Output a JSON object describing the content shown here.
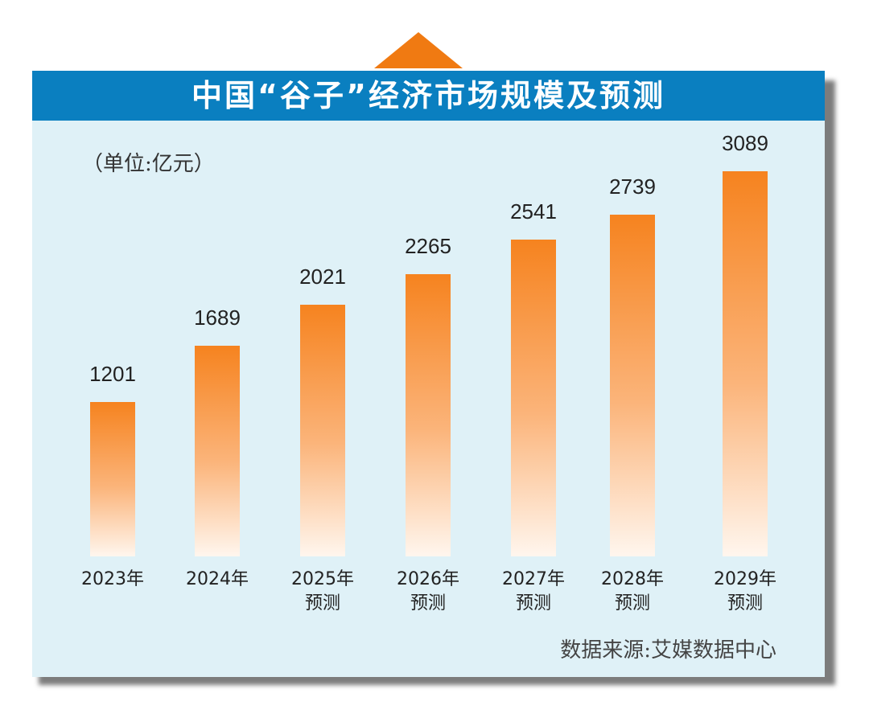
{
  "chart_data": {
    "type": "bar",
    "title": "中国“谷子”经济市场规模及预测",
    "unit_label": "（单位:亿元）",
    "categories": [
      "2023年",
      "2024年",
      "2025年",
      "2026年",
      "2027年",
      "2028年",
      "2029年"
    ],
    "category_sublabels": [
      "",
      "",
      "预测",
      "预测",
      "预测",
      "预测",
      "预测"
    ],
    "values": [
      1201,
      1689,
      2021,
      2265,
      2541,
      2739,
      3089
    ],
    "value_labels": [
      "1201",
      "1689",
      "2021",
      "2265",
      "2541",
      "2739",
      "3089"
    ],
    "source": "数据来源:艾媒数据中心",
    "xlabel": "",
    "ylabel": "亿元",
    "ylim": [
      0,
      3100
    ],
    "colors": {
      "bar_top": "#f6831f",
      "bar_bottom": "#fff6ee",
      "header": "#0a7fc0",
      "panel": "#dff1f7",
      "accent_triangle": "#f07a12"
    }
  }
}
